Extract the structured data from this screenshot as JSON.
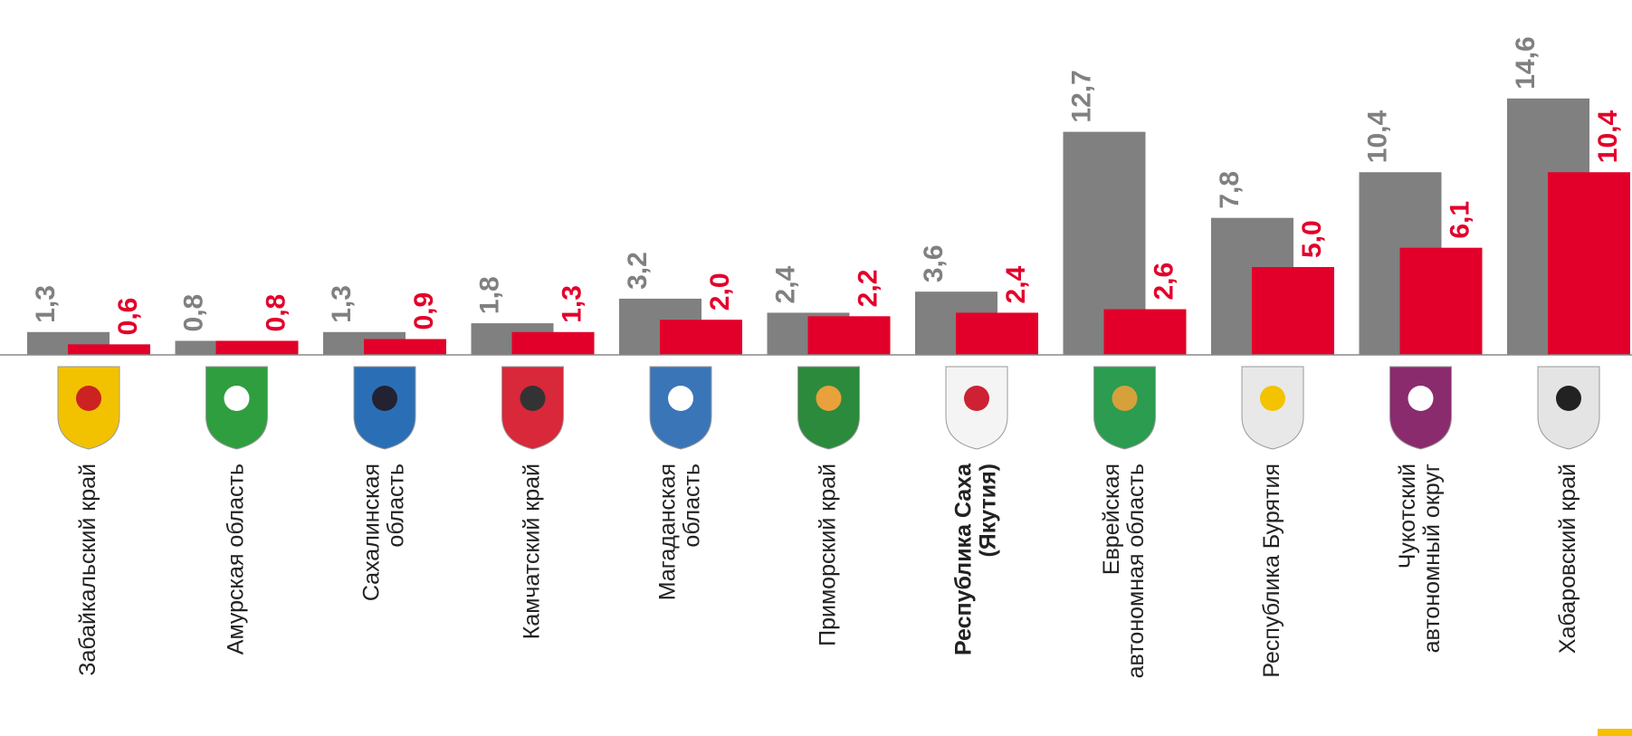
{
  "chart_data": {
    "type": "bar",
    "categories": [
      "Забайкальский край",
      "Амурская область",
      "Сахалинская\nобласть",
      "Камчатский край",
      "Магаданская\nобласть",
      "Приморский край",
      "Республика Саха\n(Якутия)",
      "Еврейская\nавтономная область",
      "Республика Бурятия",
      "Чукотский\nавтономный округ",
      "Хабаровский край"
    ],
    "series": [
      {
        "color": "#808080",
        "values": [
          1.3,
          0.8,
          1.3,
          1.8,
          3.2,
          2.4,
          3.6,
          12.7,
          7.8,
          10.4,
          14.6
        ],
        "value_labels": [
          "1,3",
          "0,8",
          "1,3",
          "1,8",
          "3,2",
          "2,4",
          "3,6",
          "12,7",
          "7,8",
          "10,4",
          "14,6"
        ]
      },
      {
        "color": "#e2002a",
        "values": [
          0.6,
          0.8,
          0.9,
          1.3,
          2.0,
          2.2,
          2.4,
          2.6,
          5.0,
          6.1,
          10.4
        ],
        "value_labels": [
          "0,6",
          "0,8",
          "0,9",
          "1,3",
          "2,0",
          "2,2",
          "2,4",
          "2,6",
          "5,0",
          "6,1",
          "10,4"
        ]
      }
    ],
    "ylim": [
      0,
      20
    ],
    "bold_categories": [
      6
    ]
  }
}
